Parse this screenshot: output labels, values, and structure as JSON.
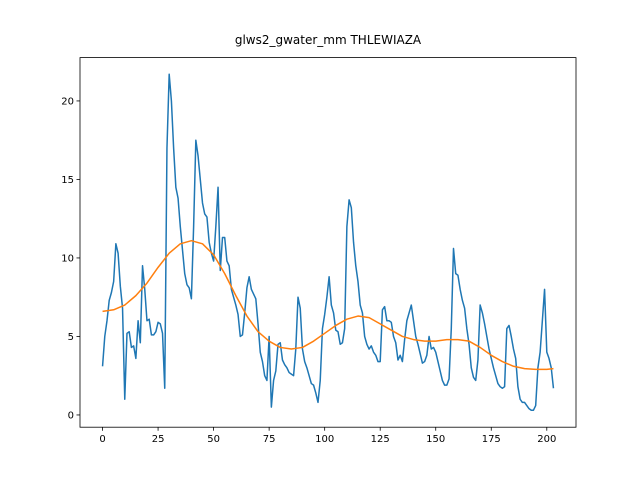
{
  "chart_data": {
    "type": "line",
    "title": "glws2_gwater_mm THLEWIAZA",
    "xlim": [
      -10.15,
      213.15
    ],
    "ylim": [
      -0.78,
      22.76
    ],
    "xticks": [
      0,
      25,
      50,
      75,
      100,
      125,
      150,
      175,
      200
    ],
    "yticks": [
      0,
      5,
      10,
      15,
      20
    ],
    "series": [
      {
        "color": "#1f77b4",
        "x": [
          0,
          1,
          2,
          3,
          4,
          5,
          6,
          7,
          8,
          9,
          10,
          11,
          12,
          13,
          14,
          15,
          16,
          17,
          18,
          19,
          20,
          21,
          22,
          23,
          24,
          25,
          26,
          27,
          28,
          29,
          30,
          31,
          32,
          33,
          34,
          35,
          36,
          37,
          38,
          39,
          40,
          41,
          42,
          43,
          44,
          45,
          46,
          47,
          48,
          49,
          50,
          51,
          52,
          53,
          54,
          55,
          56,
          57,
          58,
          59,
          60,
          61,
          62,
          63,
          64,
          65,
          66,
          67,
          68,
          69,
          70,
          71,
          72,
          73,
          74,
          75,
          76,
          77,
          78,
          79,
          80,
          81,
          82,
          83,
          84,
          85,
          86,
          87,
          88,
          89,
          90,
          91,
          92,
          93,
          94,
          95,
          96,
          97,
          98,
          99,
          100,
          101,
          102,
          103,
          104,
          105,
          106,
          107,
          108,
          109,
          110,
          111,
          112,
          113,
          114,
          115,
          116,
          117,
          118,
          119,
          120,
          121,
          122,
          123,
          124,
          125,
          126,
          127,
          128,
          129,
          130,
          131,
          132,
          133,
          134,
          135,
          136,
          137,
          138,
          139,
          140,
          141,
          142,
          143,
          144,
          145,
          146,
          147,
          148,
          149,
          150,
          151,
          152,
          153,
          154,
          155,
          156,
          157,
          158,
          159,
          160,
          161,
          162,
          163,
          164,
          165,
          166,
          167,
          168,
          169,
          170,
          171,
          172,
          173,
          174,
          175,
          176,
          177,
          178,
          179,
          180,
          181,
          182,
          183,
          184,
          185,
          186,
          187,
          188,
          189,
          190,
          191,
          192,
          193,
          194,
          195,
          196,
          197,
          198,
          199,
          200,
          201,
          202,
          203
        ],
        "values": [
          3.1,
          5.0,
          6.0,
          7.3,
          7.8,
          8.5,
          10.9,
          10.3,
          8.2,
          6.8,
          1.0,
          5.2,
          5.3,
          4.3,
          4.4,
          3.6,
          6.0,
          4.6,
          9.5,
          8.0,
          6.0,
          6.1,
          5.1,
          5.1,
          5.3,
          5.9,
          5.8,
          5.2,
          1.7,
          17.0,
          21.7,
          20.0,
          17.0,
          14.5,
          13.8,
          12.0,
          10.5,
          9.0,
          8.3,
          8.1,
          7.4,
          12.0,
          17.5,
          16.5,
          15.0,
          13.5,
          12.8,
          12.6,
          11.0,
          10.3,
          9.8,
          12.0,
          14.5,
          9.2,
          11.3,
          11.3,
          9.8,
          9.5,
          8.0,
          7.5,
          7.0,
          6.4,
          5.0,
          5.1,
          6.5,
          8.1,
          8.8,
          8.0,
          7.7,
          7.4,
          5.8,
          4.0,
          3.4,
          2.5,
          2.2,
          5.0,
          0.5,
          2.2,
          2.8,
          4.5,
          4.6,
          3.5,
          3.2,
          3.0,
          2.7,
          2.6,
          2.5,
          4.2,
          7.5,
          6.8,
          4.2,
          3.4,
          3.0,
          2.5,
          2.0,
          1.9,
          1.4,
          0.8,
          2.2,
          5.5,
          6.4,
          7.5,
          8.8,
          7.0,
          6.5,
          5.4,
          5.3,
          4.5,
          4.6,
          5.5,
          12.0,
          13.7,
          13.2,
          11.0,
          9.5,
          8.5,
          7.0,
          6.5,
          5.0,
          4.5,
          4.2,
          4.4,
          4.0,
          3.8,
          3.4,
          3.4,
          6.7,
          6.9,
          6.0,
          6.0,
          5.9,
          5.0,
          4.6,
          3.5,
          3.8,
          3.4,
          4.8,
          6.0,
          6.5,
          7.0,
          6.0,
          5.0,
          4.5,
          3.9,
          3.3,
          3.4,
          3.8,
          5.0,
          4.2,
          4.3,
          4.0,
          3.4,
          2.8,
          2.2,
          1.9,
          1.9,
          2.3,
          5.5,
          10.6,
          9.0,
          8.9,
          8.0,
          7.3,
          6.8,
          5.5,
          4.5,
          3.0,
          2.4,
          2.2,
          3.5,
          7.0,
          6.5,
          5.8,
          5.0,
          4.2,
          3.6,
          3.0,
          2.5,
          2.0,
          1.8,
          1.7,
          1.8,
          5.5,
          5.7,
          5.0,
          4.2,
          3.6,
          1.8,
          1.0,
          0.8,
          0.8,
          0.6,
          0.4,
          0.3,
          0.3,
          0.6,
          3.0,
          4.0,
          6.0,
          8.0,
          4.0,
          3.6,
          3.0,
          1.7
        ]
      },
      {
        "color": "#ff7f0e",
        "x": [
          0,
          5,
          10,
          15,
          20,
          25,
          30,
          35,
          40,
          45,
          50,
          55,
          60,
          65,
          70,
          75,
          80,
          85,
          90,
          95,
          100,
          105,
          110,
          115,
          120,
          125,
          130,
          135,
          140,
          145,
          150,
          155,
          160,
          165,
          170,
          175,
          180,
          185,
          190,
          195,
          200,
          203
        ],
        "values": [
          6.6,
          6.7,
          7.0,
          7.6,
          8.4,
          9.4,
          10.3,
          10.9,
          11.1,
          10.9,
          10.2,
          9.0,
          7.6,
          6.3,
          5.3,
          4.7,
          4.3,
          4.2,
          4.3,
          4.7,
          5.2,
          5.7,
          6.1,
          6.3,
          6.2,
          5.8,
          5.4,
          5.0,
          4.8,
          4.7,
          4.7,
          4.8,
          4.8,
          4.7,
          4.3,
          3.8,
          3.4,
          3.1,
          2.95,
          2.9,
          2.9,
          2.95
        ]
      }
    ]
  }
}
